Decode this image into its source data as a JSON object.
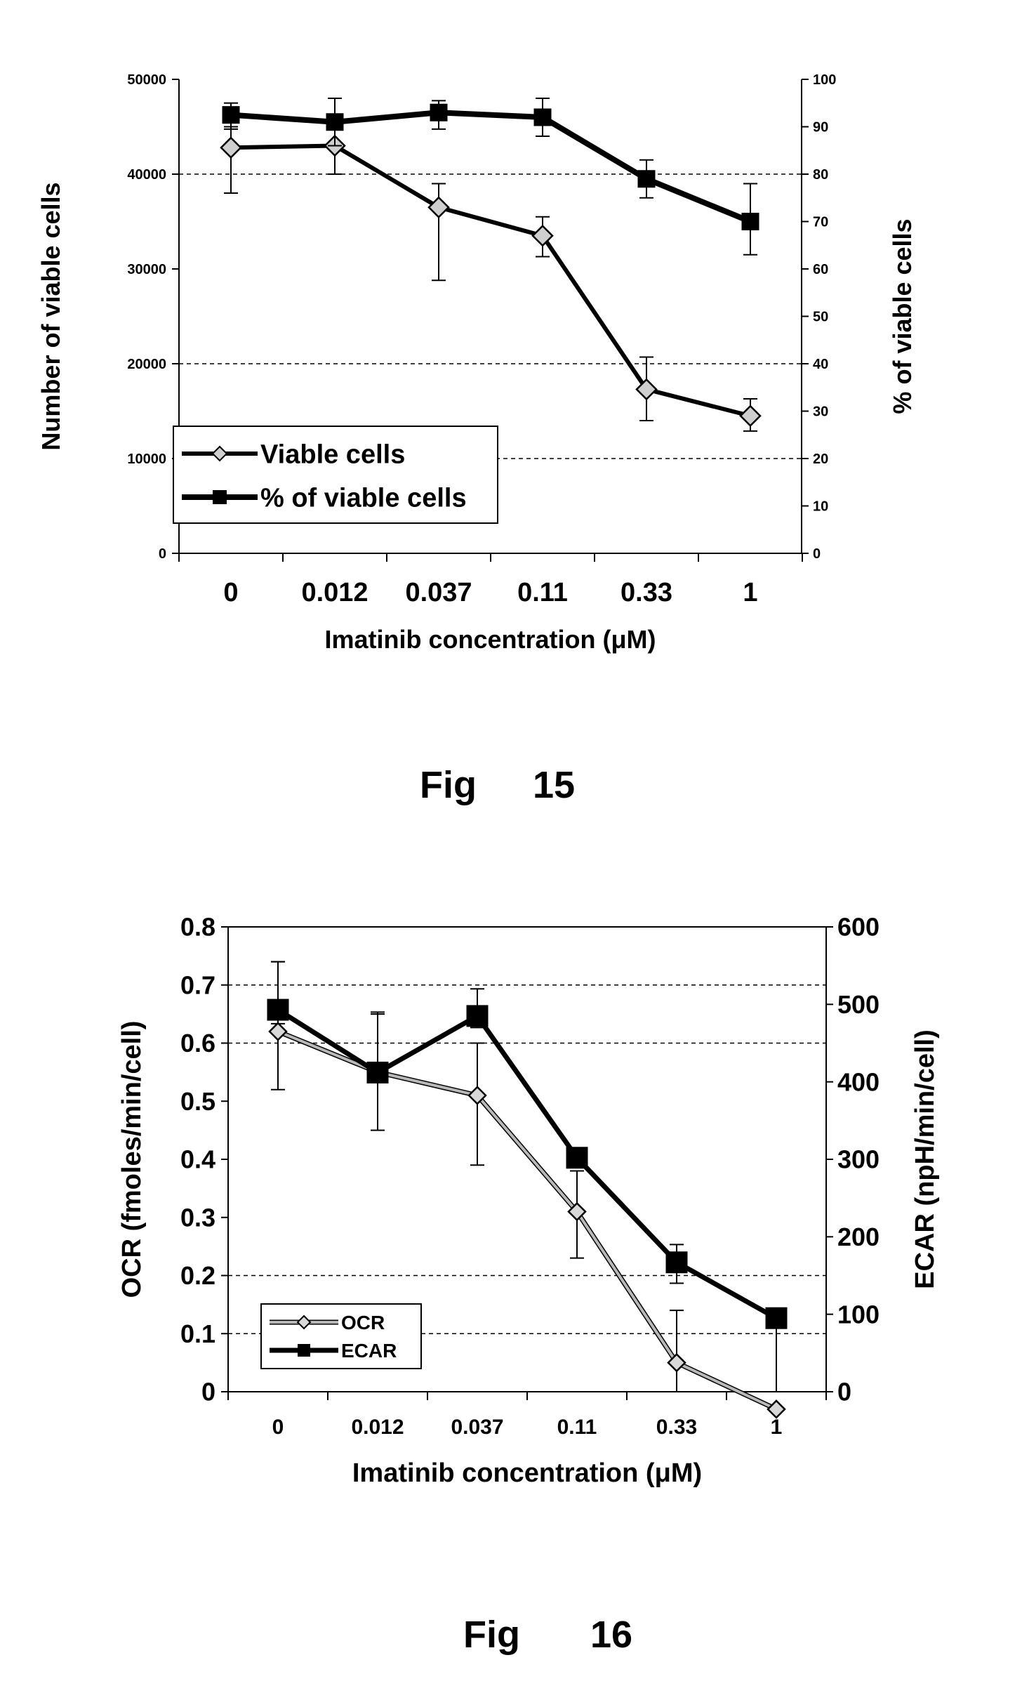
{
  "figures": [
    {
      "caption_fig": "Fig",
      "caption_num": "15"
    },
    {
      "caption_fig": "Fig",
      "caption_num": "16"
    }
  ],
  "chart_data": [
    {
      "type": "line",
      "categories": [
        "0",
        "0.012",
        "0.037",
        "0.11",
        "0.33",
        "1"
      ],
      "xlabel": "Imatinib concentration (μM)",
      "ylabel": "Number of viable cells",
      "y2label": "% of viable cells",
      "ylim": [
        0,
        50000
      ],
      "y2lim": [
        0,
        100
      ],
      "yticks": [
        "0",
        "10000",
        "20000",
        "30000",
        "40000",
        "50000"
      ],
      "y2ticks": [
        "0",
        "10",
        "20",
        "30",
        "40",
        "50",
        "60",
        "70",
        "80",
        "90",
        "100"
      ],
      "grid": "dashed horizontal",
      "legend_position": "bottom-left",
      "series": [
        {
          "name": "Viable cells",
          "axis": "left",
          "marker": "diamond",
          "values": [
            42800,
            43000,
            36500,
            33500,
            17300,
            14500
          ],
          "err_low": [
            38000,
            40000,
            28800,
            31300,
            14000,
            12900
          ],
          "err_high": [
            45000,
            45800,
            39000,
            35500,
            20700,
            16300
          ]
        },
        {
          "name": "% of viable cells",
          "axis": "right",
          "marker": "square",
          "values": [
            92.5,
            91,
            93,
            92,
            79,
            70
          ],
          "err_low": [
            89.5,
            86,
            89.5,
            88,
            75,
            63
          ],
          "err_high": [
            95,
            96,
            95.5,
            96,
            83,
            78
          ]
        }
      ]
    },
    {
      "type": "line",
      "categories": [
        "0",
        "0.012",
        "0.037",
        "0.11",
        "0.33",
        "1"
      ],
      "xlabel": "Imatinib concentration (μM)",
      "ylabel": "OCR (fmoles/min/cell)",
      "y2label": "ECAR (npH/min/cell)",
      "ylim": [
        0,
        0.8
      ],
      "y2lim": [
        0,
        600
      ],
      "yticks": [
        "0",
        "0.1",
        "0.2",
        "0.3",
        "0.4",
        "0.5",
        "0.6",
        "0.7",
        "0.8"
      ],
      "y2ticks": [
        "0",
        "100",
        "200",
        "300",
        "400",
        "500",
        "600"
      ],
      "grid": "dashed horizontal",
      "legend_position": "bottom-left",
      "series": [
        {
          "name": "OCR",
          "axis": "left",
          "marker": "diamond",
          "values": [
            0.62,
            0.55,
            0.51,
            0.31,
            0.05,
            -0.03
          ],
          "err_low": [
            0.52,
            0.45,
            0.39,
            0.23,
            0.0,
            0.0
          ],
          "err_high": [
            0.74,
            0.65,
            0.6,
            0.38,
            0.14,
            0.0
          ]
        },
        {
          "name": "ECAR",
          "axis": "right",
          "marker": "square",
          "values": [
            493,
            412,
            485,
            302,
            167,
            95
          ],
          "err_low": [
            475,
            400,
            470,
            290,
            140,
            0
          ],
          "err_high": [
            555,
            490,
            520,
            310,
            190,
            100
          ]
        }
      ]
    }
  ]
}
